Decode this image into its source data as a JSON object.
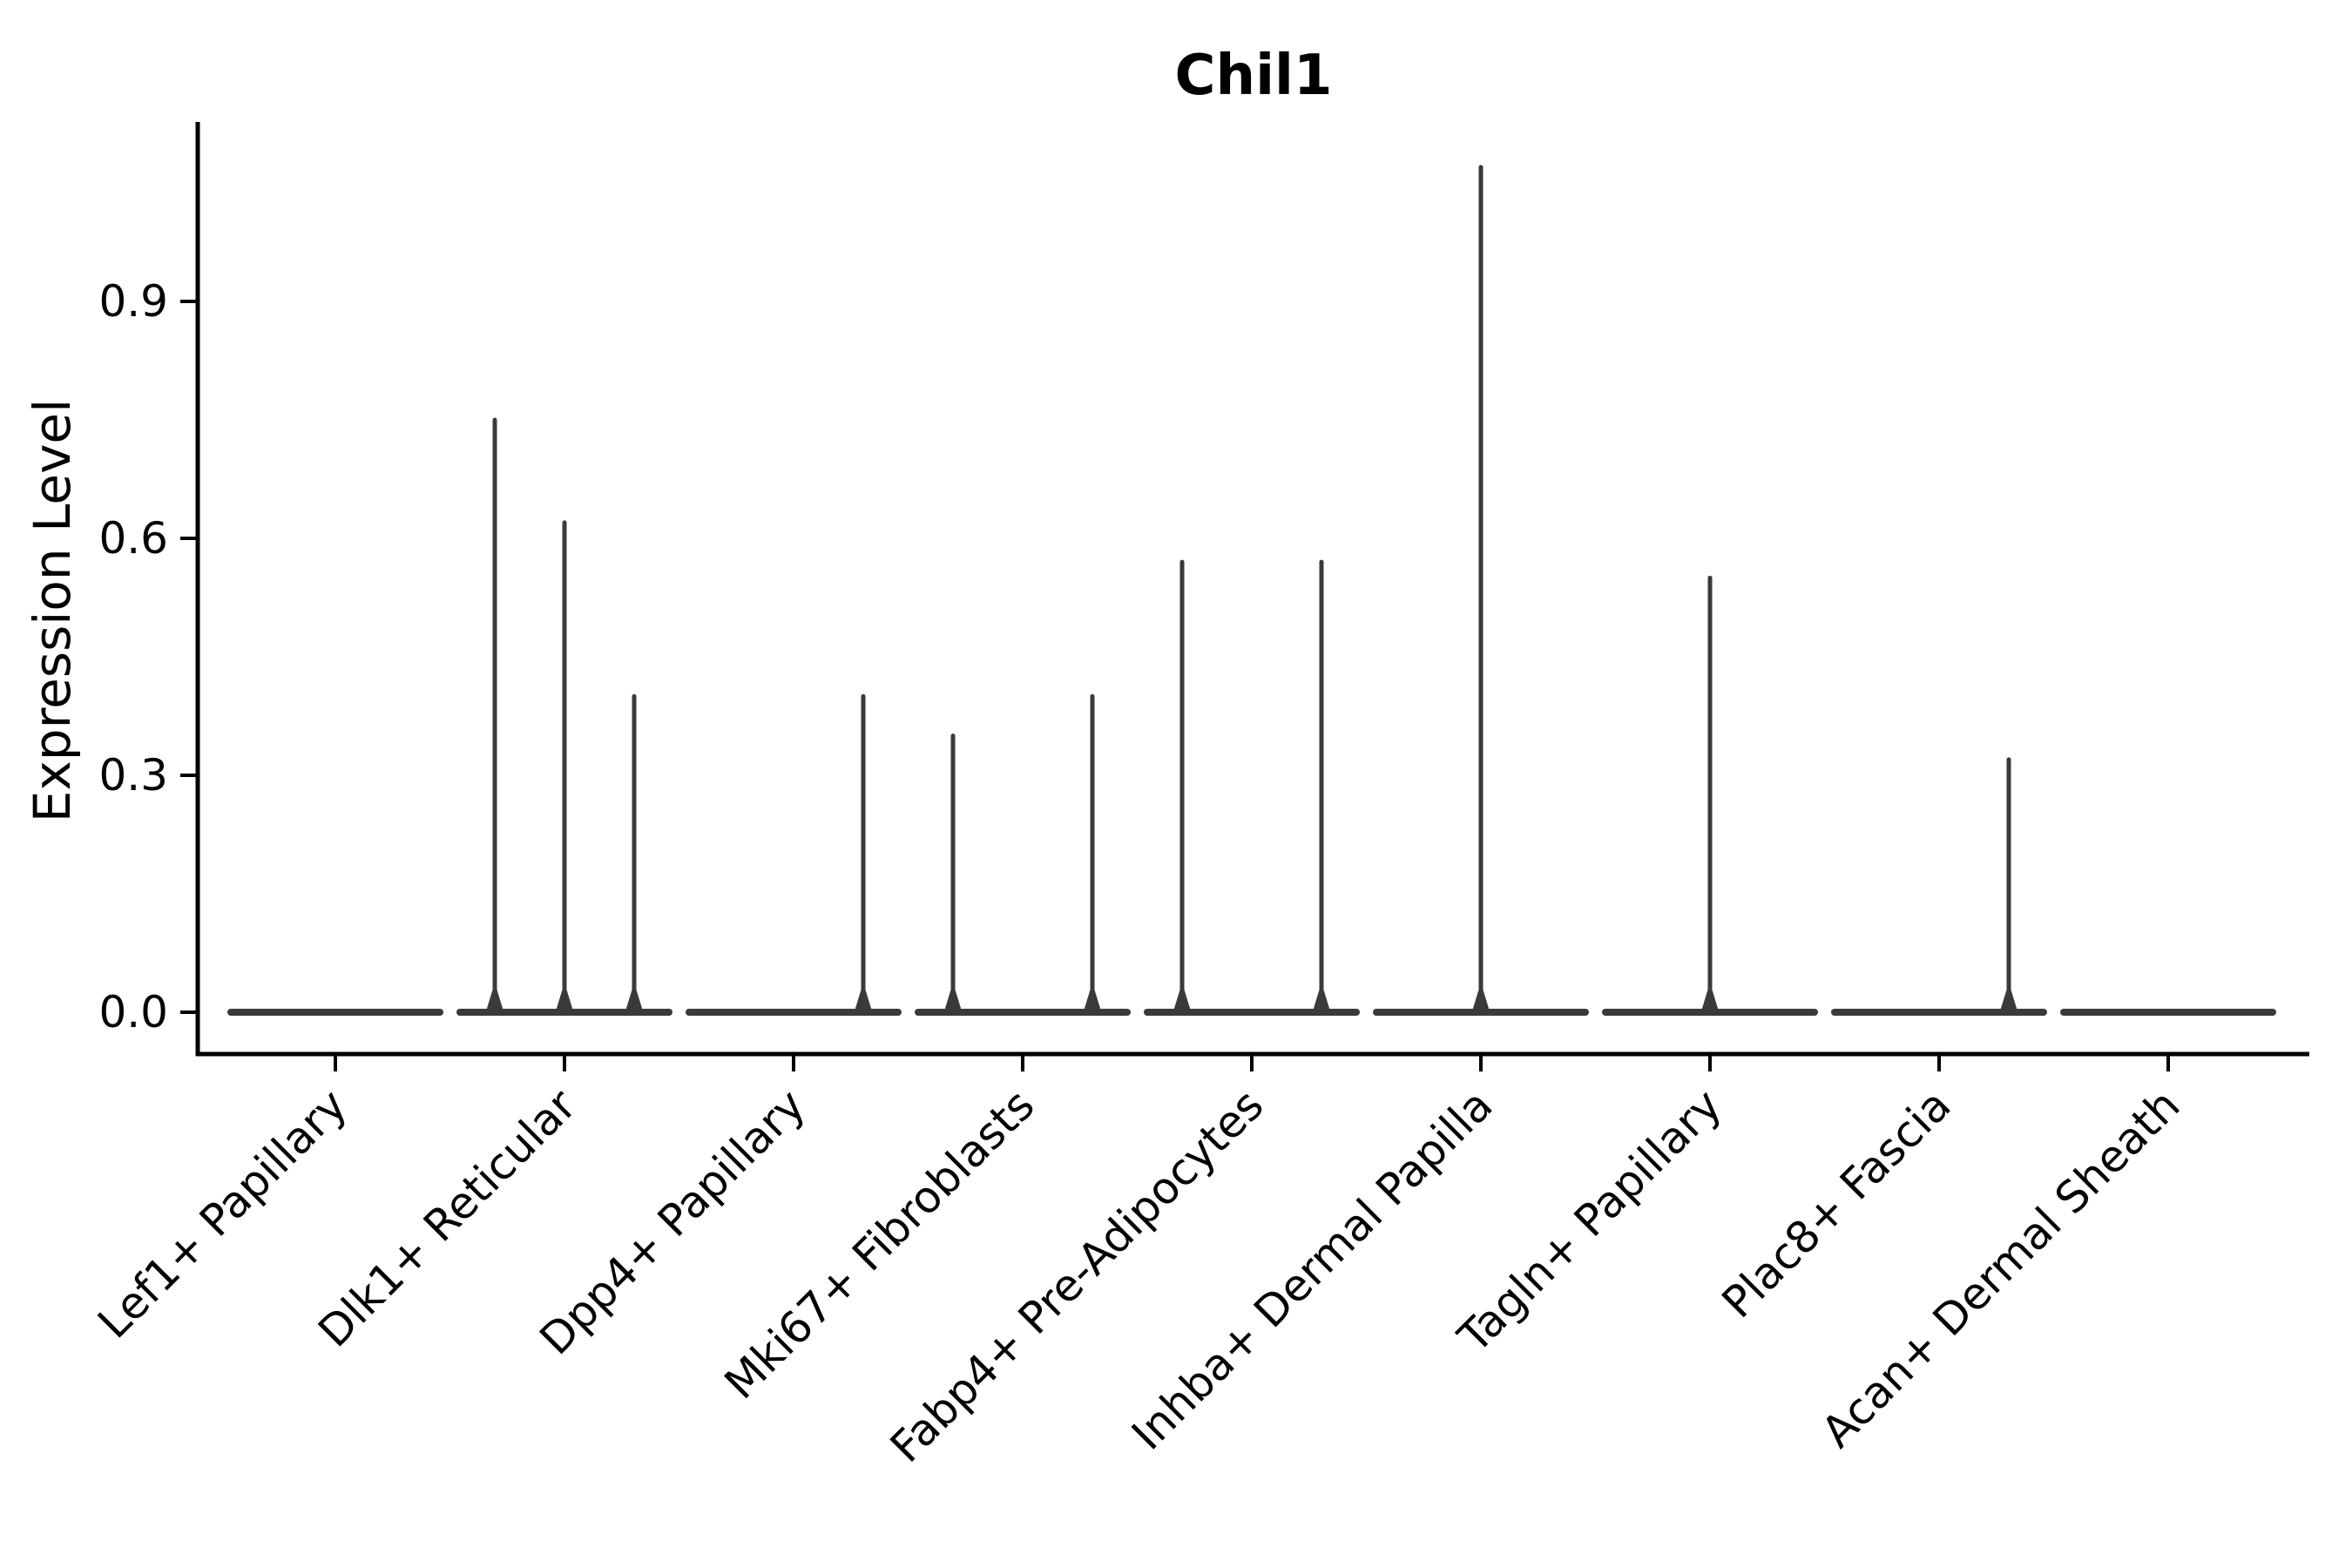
{
  "chart_data": {
    "type": "violin",
    "title": "Chil1",
    "ylabel": "Expression Level",
    "xlabel": "",
    "ylim": [
      -0.05,
      1.13
    ],
    "ytick_values": [
      0.0,
      0.3,
      0.6,
      0.9
    ],
    "ytick_labels": [
      "0.0",
      "0.3",
      "0.6",
      "0.9"
    ],
    "grid": false,
    "legend": "none",
    "description": "Violin plot of Chil1 expression; each cluster shows a flat density baseline at 0 with narrow spikes reaching the maximum expression of sub-violins",
    "baseline_value": 0.0,
    "categories": [
      {
        "label": "Lef1+ Papillary",
        "spikes": []
      },
      {
        "label": "Dlk1+ Reticular",
        "spikes": [
          {
            "pos": "left",
            "value": 0.75
          },
          {
            "pos": "center",
            "value": 0.62
          },
          {
            "pos": "right",
            "value": 0.4
          }
        ]
      },
      {
        "label": "Dpp4+ Papillary",
        "spikes": [
          {
            "pos": "right",
            "value": 0.4
          }
        ]
      },
      {
        "label": "Mki67+ Fibroblasts",
        "spikes": [
          {
            "pos": "left",
            "value": 0.35
          },
          {
            "pos": "right",
            "value": 0.4
          }
        ]
      },
      {
        "label": "Fabp4+ Pre-Adipocytes",
        "spikes": [
          {
            "pos": "left",
            "value": 0.57
          },
          {
            "pos": "right",
            "value": 0.57
          }
        ]
      },
      {
        "label": "Inhba+ Dermal Papilla",
        "spikes": [
          {
            "pos": "center",
            "value": 1.07
          }
        ]
      },
      {
        "label": "Tagln+ Papillary",
        "spikes": [
          {
            "pos": "center",
            "value": 0.55
          }
        ]
      },
      {
        "label": "Plac8+ Fascia",
        "spikes": [
          {
            "pos": "right",
            "value": 0.32
          }
        ]
      },
      {
        "label": "Acan+ Dermal Sheath",
        "spikes": []
      }
    ],
    "colors": {
      "violin": "#3a3a3a",
      "axis": "#000000",
      "text": "#000000",
      "background": "#ffffff"
    }
  }
}
